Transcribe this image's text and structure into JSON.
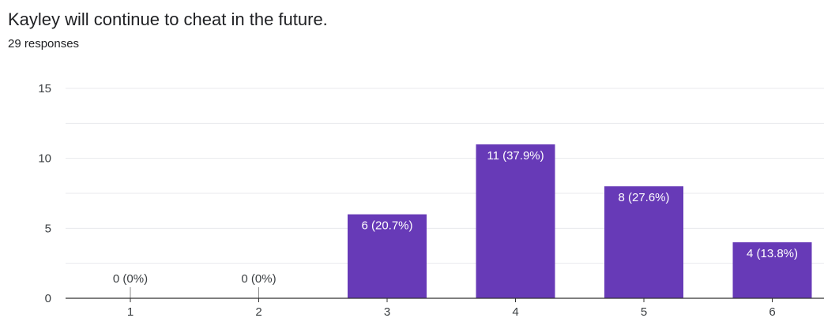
{
  "question": {
    "title": "Kayley will continue to cheat in the future.",
    "responses": "29 responses"
  },
  "colors": {
    "bar": "#673ab7",
    "grid": "#e8eaed",
    "axis": "#333333"
  },
  "chart_data": {
    "type": "bar",
    "title": "Kayley will continue to cheat in the future.",
    "categories": [
      "1",
      "2",
      "3",
      "4",
      "5",
      "6"
    ],
    "values": [
      0,
      0,
      6,
      11,
      8,
      4
    ],
    "labels": [
      "0 (0%)",
      "0 (0%)",
      "6 (20.7%)",
      "11 (37.9%)",
      "8 (27.6%)",
      "4 (13.8%)"
    ],
    "ylim": [
      0,
      15
    ],
    "yticks": [
      0,
      5,
      10,
      15
    ],
    "grid": true,
    "xlabel": "",
    "ylabel": ""
  }
}
